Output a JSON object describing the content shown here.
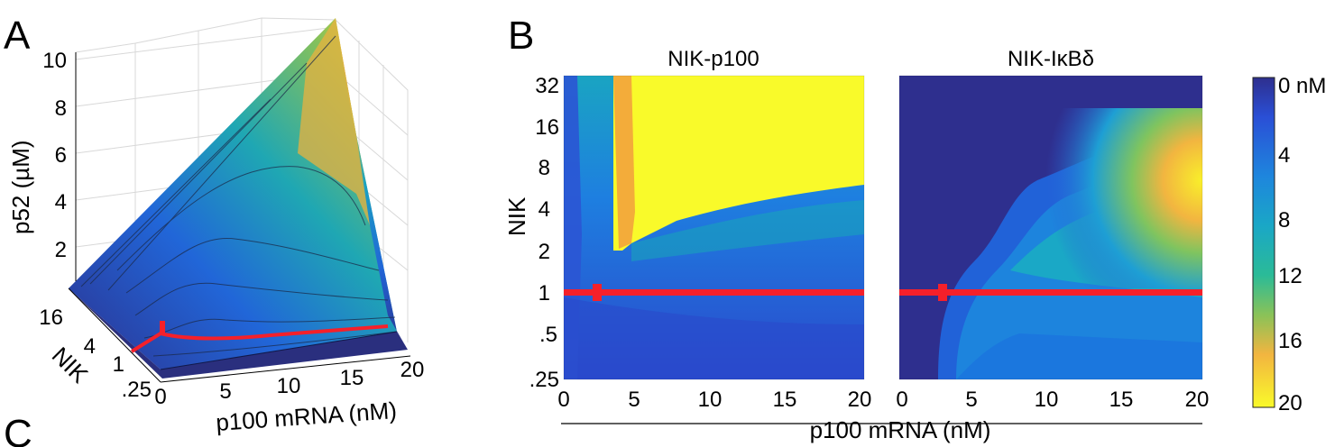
{
  "panels": {
    "a": "A",
    "b": "B",
    "c": "C"
  },
  "colors": {
    "high": "#f9fa2a",
    "low": "#2e2f8e",
    "marker": "#f5202a"
  },
  "chart_data": [
    {
      "type": "surface",
      "zlabel": "p52 (µM)",
      "ylabel": "NIK",
      "xlabel": "p100 mRNA (nM)",
      "z_ticks": [
        "2",
        "4",
        "6",
        "8",
        "10"
      ],
      "y_ticks": [
        ".25",
        "1",
        "4",
        "16"
      ],
      "x_ticks": [
        "0",
        "5",
        "10",
        "15",
        "20"
      ],
      "zlim": [
        0,
        10.5
      ],
      "xlim": [
        0,
        20
      ],
      "ylim": [
        0.25,
        32
      ],
      "colormap": "parula",
      "red_line": {
        "nik": 1,
        "marker_x": 2.5
      }
    },
    {
      "type": "heatmap",
      "title": "NIK-p100",
      "ylabel": "NIK",
      "y_ticks": [
        "32",
        "16",
        "8",
        "4",
        "2",
        "1",
        ".5",
        ".25"
      ],
      "x_ticks": [
        "0",
        "5",
        "10",
        "15",
        "20"
      ],
      "xlim": [
        0,
        20
      ],
      "ylim": [
        0.25,
        32
      ],
      "colormap": "parula",
      "red_line": {
        "nik": 1,
        "marker_x": 2.5
      }
    },
    {
      "type": "heatmap",
      "title": "NIK-IκBδ",
      "x_ticks": [
        "0",
        "5",
        "10",
        "15",
        "20"
      ],
      "xlim": [
        0,
        20
      ],
      "ylim": [
        0.25,
        32
      ],
      "colormap": "parula",
      "red_line": {
        "nik": 1,
        "marker_x": 3
      }
    },
    {
      "type": "colorbar",
      "ticks": [
        "0 nM",
        "4",
        "8",
        "12",
        "16",
        "20"
      ],
      "range": [
        0,
        20
      ]
    }
  ],
  "shared_xlabel": "p100 mRNA (nM)"
}
